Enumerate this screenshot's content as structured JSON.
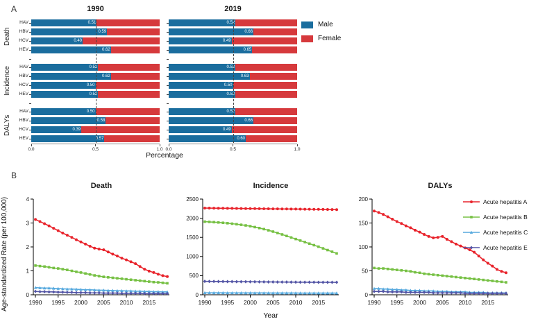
{
  "figure": {
    "panel_a_label": "A",
    "panel_b_label": "B"
  },
  "colors": {
    "male": "#1a6d9e",
    "female": "#d6393c",
    "axis": "#000000"
  },
  "chart_data": [
    {
      "type": "bar",
      "id": "bars-1990",
      "title": "1990",
      "orientation": "horizontal",
      "stacked": true,
      "xlabel": "Percentage",
      "xlim": [
        0,
        1
      ],
      "xticks": [
        "0.0",
        "0.5",
        "1.0"
      ],
      "reference_line": 0.5,
      "legend_labels": [
        "Male",
        "Female"
      ],
      "groups": [
        "Death",
        "Incidence",
        "DALYs"
      ],
      "categories": [
        "HAV",
        "HBV",
        "HCV",
        "HEV"
      ],
      "male_share": [
        [
          0.51,
          0.59,
          0.4,
          0.62
        ],
        [
          0.52,
          0.62,
          0.5,
          0.52
        ],
        [
          0.5,
          0.58,
          0.39,
          0.57
        ]
      ]
    },
    {
      "type": "bar",
      "id": "bars-2019",
      "title": "2019",
      "orientation": "horizontal",
      "stacked": true,
      "xlabel": "Percentage",
      "xlim": [
        0,
        1
      ],
      "xticks": [
        "0.0",
        "0.5",
        "1.0"
      ],
      "reference_line": 0.5,
      "legend_labels": [
        "Male",
        "Female"
      ],
      "groups": [
        "Death",
        "Incidence",
        "DALYs"
      ],
      "categories": [
        "HAV",
        "HBV",
        "HCV",
        "HEV"
      ],
      "male_share": [
        [
          0.52,
          0.66,
          0.49,
          0.65
        ],
        [
          0.52,
          0.63,
          0.5,
          0.52
        ],
        [
          0.52,
          0.66,
          0.49,
          0.6
        ]
      ]
    },
    {
      "type": "line",
      "id": "death",
      "title": "Death",
      "ylabel": "Age-standardized Rate (per 100,000)",
      "x_start": 1990,
      "x_end": 2019,
      "xticks": [
        1990,
        1995,
        2000,
        2005,
        2010,
        2015
      ],
      "ylim": [
        0,
        4
      ],
      "yticks": [
        0,
        1,
        2,
        3,
        4
      ],
      "series": [
        {
          "name": "Acute hepatitis A",
          "color": "#e8232b",
          "marker": "circle",
          "values": [
            3.15,
            3.06,
            2.97,
            2.88,
            2.78,
            2.68,
            2.58,
            2.49,
            2.4,
            2.3,
            2.21,
            2.12,
            2.03,
            1.95,
            1.91,
            1.88,
            1.79,
            1.7,
            1.62,
            1.53,
            1.46,
            1.38,
            1.3,
            1.18,
            1.07,
            0.99,
            0.93,
            0.86,
            0.8,
            0.76
          ]
        },
        {
          "name": "Acute hepatitis B",
          "color": "#76c043",
          "marker": "square",
          "values": [
            1.22,
            1.2,
            1.18,
            1.15,
            1.12,
            1.1,
            1.07,
            1.04,
            1.0,
            0.96,
            0.93,
            0.89,
            0.85,
            0.81,
            0.78,
            0.75,
            0.73,
            0.71,
            0.69,
            0.67,
            0.65,
            0.63,
            0.61,
            0.59,
            0.57,
            0.55,
            0.53,
            0.52,
            0.5,
            0.48
          ]
        },
        {
          "name": "Acute hepatitis C",
          "color": "#56a9de",
          "marker": "triangle",
          "values": [
            0.3,
            0.29,
            0.28,
            0.28,
            0.27,
            0.26,
            0.25,
            0.24,
            0.24,
            0.23,
            0.22,
            0.21,
            0.21,
            0.2,
            0.19,
            0.19,
            0.18,
            0.18,
            0.17,
            0.17,
            0.16,
            0.16,
            0.15,
            0.15,
            0.14,
            0.14,
            0.13,
            0.13,
            0.12,
            0.12
          ]
        },
        {
          "name": "Acute hepatitis E",
          "color": "#5355a5",
          "marker": "diamond",
          "values": [
            0.14,
            0.13,
            0.13,
            0.12,
            0.12,
            0.11,
            0.11,
            0.1,
            0.1,
            0.09,
            0.09,
            0.09,
            0.08,
            0.08,
            0.08,
            0.07,
            0.07,
            0.07,
            0.07,
            0.06,
            0.06,
            0.06,
            0.06,
            0.06,
            0.05,
            0.05,
            0.05,
            0.05,
            0.05,
            0.05
          ]
        }
      ]
    },
    {
      "type": "line",
      "id": "incidence",
      "title": "Incidence",
      "xlabel": "Year",
      "x_start": 1990,
      "x_end": 2019,
      "xticks": [
        1990,
        1995,
        2000,
        2005,
        2010,
        2015
      ],
      "ylim": [
        0,
        2500
      ],
      "yticks": [
        0,
        500,
        1000,
        1500,
        2000,
        2500
      ],
      "series": [
        {
          "name": "Acute hepatitis A",
          "color": "#e8232b",
          "marker": "circle",
          "values": [
            2265,
            2264,
            2262,
            2261,
            2259,
            2258,
            2257,
            2255,
            2254,
            2252,
            2251,
            2250,
            2248,
            2247,
            2246,
            2244,
            2243,
            2242,
            2241,
            2240,
            2239,
            2238,
            2236,
            2235,
            2233,
            2232,
            2230,
            2228,
            2226,
            2224
          ]
        },
        {
          "name": "Acute hepatitis B",
          "color": "#76c043",
          "marker": "square",
          "values": [
            1910,
            1904,
            1897,
            1889,
            1880,
            1869,
            1857,
            1843,
            1828,
            1811,
            1792,
            1768,
            1743,
            1715,
            1684,
            1650,
            1614,
            1576,
            1536,
            1496,
            1456,
            1416,
            1376,
            1336,
            1296,
            1256,
            1212,
            1168,
            1124,
            1080
          ]
        },
        {
          "name": "Acute hepatitis C",
          "color": "#56a9de",
          "marker": "triangle",
          "values": [
            52,
            52,
            51,
            51,
            51,
            50,
            50,
            50,
            49,
            49,
            49,
            48,
            48,
            48,
            47,
            47,
            47,
            46,
            46,
            46,
            46,
            45,
            45,
            45,
            45,
            44,
            44,
            44,
            44,
            44
          ]
        },
        {
          "name": "Acute hepatitis E",
          "color": "#5355a5",
          "marker": "diamond",
          "values": [
            350,
            349,
            348,
            347,
            346,
            345,
            344,
            343,
            342,
            341,
            340,
            339,
            338,
            337,
            336,
            335,
            334,
            333,
            332,
            331,
            330,
            329,
            329,
            328,
            328,
            327,
            327,
            326,
            326,
            325
          ]
        }
      ]
    },
    {
      "type": "line",
      "id": "dalys",
      "title": "DALYs",
      "x_start": 1990,
      "x_end": 2019,
      "xticks": [
        1990,
        1995,
        2000,
        2005,
        2010,
        2015
      ],
      "ylim": [
        0,
        200
      ],
      "yticks": [
        0,
        50,
        100,
        150,
        200
      ],
      "legend_position": "right",
      "series": [
        {
          "name": "Acute hepatitis A",
          "color": "#e8232b",
          "marker": "circle",
          "values": [
            175,
            172,
            168,
            163,
            158,
            153,
            149,
            144,
            140,
            135,
            131,
            126,
            122,
            119,
            120,
            122,
            116,
            111,
            106,
            102,
            98,
            94,
            89,
            81,
            73,
            66,
            60,
            53,
            49,
            46
          ]
        },
        {
          "name": "Acute hepatitis B",
          "color": "#76c043",
          "marker": "square",
          "values": [
            56,
            55,
            55,
            54,
            53,
            52,
            51,
            50,
            49,
            47,
            46,
            44,
            43,
            42,
            41,
            40,
            39,
            38,
            37,
            36,
            35,
            34,
            33,
            32,
            31,
            30,
            29,
            28,
            27,
            26
          ]
        },
        {
          "name": "Acute hepatitis C",
          "color": "#56a9de",
          "marker": "triangle",
          "values": [
            13,
            13,
            12,
            12,
            11,
            11,
            10,
            10,
            9,
            9,
            9,
            8,
            8,
            8,
            7,
            7,
            7,
            6,
            6,
            6,
            6,
            5,
            5,
            5,
            5,
            4,
            4,
            4,
            4,
            4
          ]
        },
        {
          "name": "Acute hepatitis E",
          "color": "#5355a5",
          "marker": "diamond",
          "values": [
            7,
            7,
            7,
            6,
            6,
            6,
            6,
            5,
            5,
            5,
            5,
            5,
            5,
            4,
            4,
            4,
            4,
            4,
            4,
            4,
            3,
            3,
            3,
            3,
            3,
            3,
            3,
            3,
            3,
            3
          ]
        }
      ]
    }
  ]
}
